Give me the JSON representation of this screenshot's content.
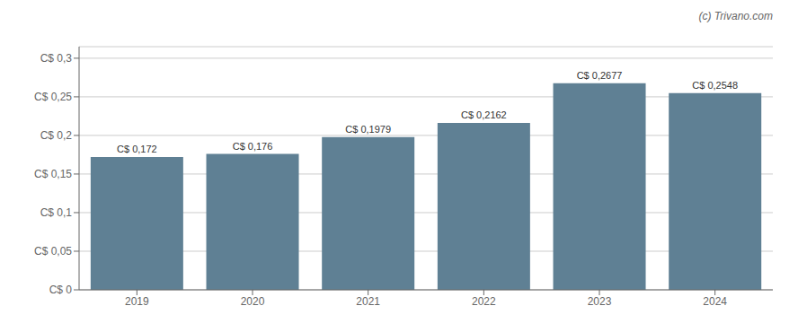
{
  "chart_data": {
    "type": "bar",
    "annotations": [
      "(c) Trivano.com"
    ],
    "categories": [
      "2019",
      "2020",
      "2021",
      "2022",
      "2023",
      "2024"
    ],
    "values": [
      0.172,
      0.176,
      0.1979,
      0.2162,
      0.2677,
      0.2548
    ],
    "value_labels": [
      "C$ 0,172",
      "C$ 0,176",
      "C$ 0,1979",
      "C$ 0,2162",
      "C$ 0,2677",
      "C$ 0,2548"
    ],
    "data_labels": true,
    "color": "#5f8094",
    "ylim": [
      0,
      0.315
    ],
    "yticks": [
      {
        "value": 0,
        "label": "C$ 0"
      },
      {
        "value": 0.05,
        "label": "C$ 0,05"
      },
      {
        "value": 0.1,
        "label": "C$ 0,1"
      },
      {
        "value": 0.15,
        "label": "C$ 0,15"
      },
      {
        "value": 0.2,
        "label": "C$ 0,2"
      },
      {
        "value": 0.25,
        "label": "C$ 0,25"
      },
      {
        "value": 0.3,
        "label": "C$ 0,3"
      }
    ],
    "grid": true
  }
}
